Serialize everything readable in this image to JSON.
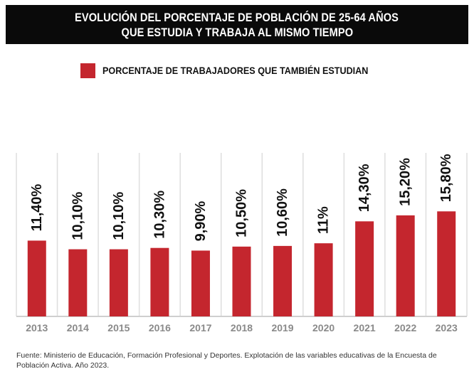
{
  "title": {
    "line1": "EVOLUCIÓN DEL PORCENTAJE DE POBLACIÓN DE 25-64 AÑOS",
    "line2": "QUE ESTUDIA Y TRABAJA AL MISMO TIEMPO"
  },
  "legend": {
    "label": "PORCENTAJE DE TRABAJADORES QUE TAMBIÉN ESTUDIAN",
    "color": "#c4262e"
  },
  "source": "Fuente: Ministerio de Educación, Formación Profesional y Deportes. Explotación de las variables educativas de la Encuesta de Población Activa. Año 2023.",
  "chart_data": {
    "type": "bar",
    "categories": [
      "2013",
      "2014",
      "2015",
      "2016",
      "2017",
      "2018",
      "2019",
      "2020",
      "2021",
      "2022",
      "2023"
    ],
    "values": [
      11.4,
      10.1,
      10.1,
      10.3,
      9.9,
      10.5,
      10.6,
      11.0,
      14.3,
      15.2,
      15.8
    ],
    "data_labels": [
      "11,40%",
      "10,10%",
      "10,10%",
      "10,30%",
      "9,90%",
      "10,50%",
      "10,60%",
      "11%",
      "14,30%",
      "15,20%",
      "15,80%"
    ],
    "series": [
      {
        "name": "PORCENTAJE DE TRABAJADORES QUE TAMBIÉN ESTUDIAN",
        "values": [
          11.4,
          10.1,
          10.1,
          10.3,
          9.9,
          10.5,
          10.6,
          11.0,
          14.3,
          15.2,
          15.8
        ]
      }
    ],
    "bar_color": "#c4262e",
    "grid": "vertical separators",
    "legend_position": "top",
    "data_label_orientation": "rotated",
    "baseline": 0
  }
}
